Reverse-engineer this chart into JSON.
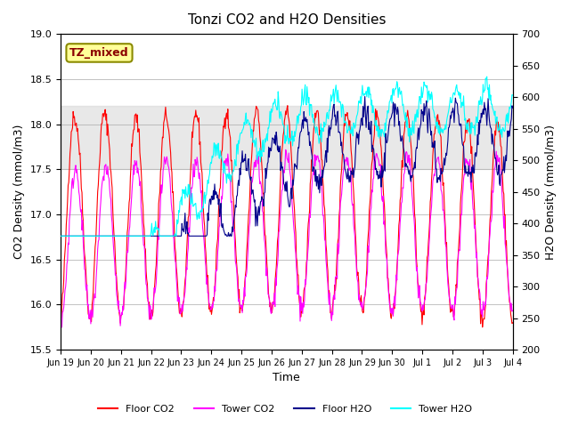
{
  "title": "Tonzi CO2 and H2O Densities",
  "xlabel": "Time",
  "ylabel_left": "CO2 Density (mmol/m3)",
  "ylabel_right": "H2O Density (mmol/m3)",
  "ylim_left": [
    15.5,
    19.0
  ],
  "ylim_right": [
    200,
    700
  ],
  "yticks_left": [
    15.5,
    16.0,
    16.5,
    17.0,
    17.5,
    18.0,
    18.5,
    19.0
  ],
  "yticks_right": [
    200,
    250,
    300,
    350,
    400,
    450,
    500,
    550,
    600,
    650,
    700
  ],
  "xtick_labels": [
    "Jun 19",
    "Jun 20",
    "Jun 21",
    "Jun 22",
    "Jun 23",
    "Jun 24",
    "Jun 25",
    "Jun 26",
    "Jun 27",
    "Jun 28",
    "Jun 29",
    "Jun 30",
    "Jul 1",
    "Jul 2",
    "Jul 3",
    "Jul 4"
  ],
  "xtick_prefix": "Jun",
  "annotation_text": "TZ_mixed",
  "annotation_color": "#8B0000",
  "annotation_bg": "#FFFF99",
  "annotation_border": "#8B8B00",
  "colors": {
    "floor_co2": "#FF0000",
    "tower_co2": "#FF00FF",
    "floor_h2o": "#00008B",
    "tower_h2o": "#00FFFF"
  },
  "legend_labels": [
    "Floor CO2",
    "Tower CO2",
    "Floor H2O",
    "Tower H2O"
  ],
  "shaded_region": [
    17.5,
    18.2
  ],
  "shaded_color": "#D3D3D3",
  "grid_color": "#AAAAAA",
  "n_days": 15,
  "points_per_day": 48
}
